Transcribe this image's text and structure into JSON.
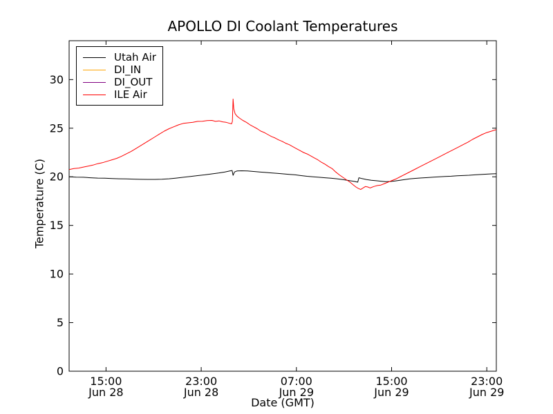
{
  "chart_data": {
    "type": "line",
    "title": "APOLLO DI Coolant Temperatures",
    "xlabel": "Date (GMT)",
    "ylabel": "Temperature (C)",
    "grid": false,
    "legend_position": "upper left",
    "x_unit": "hours since Jun 28 00:00 GMT",
    "xlim": [
      11.9,
      47.8
    ],
    "ylim": [
      0,
      34
    ],
    "x_ticks": [
      {
        "value": 15,
        "label": "15:00",
        "sublabel": "Jun 28"
      },
      {
        "value": 23,
        "label": "23:00",
        "sublabel": "Jun 28"
      },
      {
        "value": 31,
        "label": "07:00",
        "sublabel": "Jun 29"
      },
      {
        "value": 39,
        "label": "15:00",
        "sublabel": "Jun 29"
      },
      {
        "value": 47,
        "label": "23:00",
        "sublabel": "Jun 29"
      }
    ],
    "y_ticks": [
      0,
      5,
      10,
      15,
      20,
      25,
      30
    ],
    "series": [
      {
        "name": "Utah Air",
        "color": "#000000",
        "points": [
          [
            11.9,
            20.0
          ],
          [
            12.5,
            19.97
          ],
          [
            13.1,
            19.95
          ],
          [
            13.7,
            19.9
          ],
          [
            14.3,
            19.87
          ],
          [
            14.9,
            19.85
          ],
          [
            15.5,
            19.82
          ],
          [
            16.1,
            19.8
          ],
          [
            16.7,
            19.78
          ],
          [
            17.3,
            19.76
          ],
          [
            17.9,
            19.74
          ],
          [
            18.5,
            19.73
          ],
          [
            19.1,
            19.73
          ],
          [
            19.7,
            19.75
          ],
          [
            20.3,
            19.8
          ],
          [
            20.9,
            19.87
          ],
          [
            21.5,
            19.95
          ],
          [
            22.1,
            20.03
          ],
          [
            22.7,
            20.12
          ],
          [
            23.3,
            20.2
          ],
          [
            23.9,
            20.3
          ],
          [
            24.5,
            20.4
          ],
          [
            25.0,
            20.5
          ],
          [
            25.4,
            20.6
          ],
          [
            25.6,
            20.65
          ],
          [
            25.68,
            20.15
          ],
          [
            25.8,
            20.5
          ],
          [
            26.0,
            20.6
          ],
          [
            26.4,
            20.62
          ],
          [
            26.9,
            20.6
          ],
          [
            27.4,
            20.55
          ],
          [
            27.9,
            20.5
          ],
          [
            28.4,
            20.45
          ],
          [
            28.9,
            20.4
          ],
          [
            29.4,
            20.35
          ],
          [
            29.9,
            20.3
          ],
          [
            30.4,
            20.25
          ],
          [
            30.9,
            20.2
          ],
          [
            31.4,
            20.12
          ],
          [
            31.9,
            20.05
          ],
          [
            32.4,
            20.0
          ],
          [
            32.9,
            19.95
          ],
          [
            33.4,
            19.9
          ],
          [
            33.9,
            19.85
          ],
          [
            34.4,
            19.8
          ],
          [
            34.9,
            19.72
          ],
          [
            35.4,
            19.62
          ],
          [
            35.9,
            19.52
          ],
          [
            36.15,
            19.45
          ],
          [
            36.25,
            19.9
          ],
          [
            36.5,
            19.82
          ],
          [
            36.9,
            19.72
          ],
          [
            37.3,
            19.65
          ],
          [
            37.7,
            19.6
          ],
          [
            38.1,
            19.55
          ],
          [
            38.5,
            19.5
          ],
          [
            38.9,
            19.52
          ],
          [
            39.3,
            19.58
          ],
          [
            39.7,
            19.65
          ],
          [
            40.1,
            19.72
          ],
          [
            40.5,
            19.78
          ],
          [
            41.0,
            19.84
          ],
          [
            41.5,
            19.88
          ],
          [
            42.0,
            19.92
          ],
          [
            42.5,
            19.96
          ],
          [
            43.0,
            20.0
          ],
          [
            43.5,
            20.03
          ],
          [
            44.0,
            20.06
          ],
          [
            44.5,
            20.1
          ],
          [
            45.0,
            20.13
          ],
          [
            45.5,
            20.16
          ],
          [
            46.0,
            20.2
          ],
          [
            46.5,
            20.24
          ],
          [
            47.0,
            20.27
          ],
          [
            47.4,
            20.3
          ],
          [
            47.8,
            20.32
          ]
        ]
      },
      {
        "name": "DI_IN",
        "color": "#ffa500",
        "points": []
      },
      {
        "name": "DI_OUT",
        "color": "#800080",
        "points": []
      },
      {
        "name": "ILE Air",
        "color": "#ff0000",
        "points": [
          [
            11.9,
            20.75
          ],
          [
            12.3,
            20.85
          ],
          [
            12.7,
            20.9
          ],
          [
            13.1,
            21.0
          ],
          [
            13.5,
            21.1
          ],
          [
            13.9,
            21.2
          ],
          [
            14.3,
            21.35
          ],
          [
            14.7,
            21.45
          ],
          [
            15.1,
            21.6
          ],
          [
            15.5,
            21.75
          ],
          [
            15.9,
            21.9
          ],
          [
            16.3,
            22.1
          ],
          [
            16.7,
            22.35
          ],
          [
            17.1,
            22.6
          ],
          [
            17.5,
            22.9
          ],
          [
            17.9,
            23.2
          ],
          [
            18.3,
            23.5
          ],
          [
            18.7,
            23.8
          ],
          [
            19.1,
            24.1
          ],
          [
            19.5,
            24.4
          ],
          [
            19.9,
            24.7
          ],
          [
            20.3,
            24.95
          ],
          [
            20.7,
            25.15
          ],
          [
            21.1,
            25.35
          ],
          [
            21.5,
            25.5
          ],
          [
            21.9,
            25.55
          ],
          [
            22.3,
            25.6
          ],
          [
            22.7,
            25.7
          ],
          [
            23.1,
            25.72
          ],
          [
            23.5,
            25.78
          ],
          [
            23.9,
            25.8
          ],
          [
            24.2,
            25.7
          ],
          [
            24.5,
            25.75
          ],
          [
            24.8,
            25.65
          ],
          [
            25.1,
            25.6
          ],
          [
            25.4,
            25.5
          ],
          [
            25.55,
            25.45
          ],
          [
            25.62,
            25.7
          ],
          [
            25.68,
            28.0
          ],
          [
            25.74,
            27.0
          ],
          [
            25.85,
            26.5
          ],
          [
            26.0,
            26.25
          ],
          [
            26.2,
            26.05
          ],
          [
            26.5,
            25.8
          ],
          [
            26.8,
            25.6
          ],
          [
            27.1,
            25.35
          ],
          [
            27.4,
            25.15
          ],
          [
            27.7,
            24.95
          ],
          [
            28.0,
            24.7
          ],
          [
            28.3,
            24.55
          ],
          [
            28.6,
            24.35
          ],
          [
            28.9,
            24.15
          ],
          [
            29.2,
            24.0
          ],
          [
            29.5,
            23.8
          ],
          [
            29.8,
            23.65
          ],
          [
            30.1,
            23.45
          ],
          [
            30.4,
            23.3
          ],
          [
            30.7,
            23.1
          ],
          [
            31.0,
            22.9
          ],
          [
            31.3,
            22.7
          ],
          [
            31.6,
            22.5
          ],
          [
            31.9,
            22.35
          ],
          [
            32.2,
            22.15
          ],
          [
            32.5,
            21.95
          ],
          [
            32.8,
            21.75
          ],
          [
            33.1,
            21.5
          ],
          [
            33.4,
            21.3
          ],
          [
            33.7,
            21.05
          ],
          [
            34.0,
            20.85
          ],
          [
            34.3,
            20.5
          ],
          [
            34.6,
            20.2
          ],
          [
            34.9,
            19.95
          ],
          [
            35.2,
            19.7
          ],
          [
            35.5,
            19.45
          ],
          [
            35.8,
            19.15
          ],
          [
            36.0,
            18.95
          ],
          [
            36.2,
            18.8
          ],
          [
            36.4,
            18.7
          ],
          [
            36.6,
            18.85
          ],
          [
            36.8,
            19.0
          ],
          [
            37.0,
            18.95
          ],
          [
            37.2,
            18.85
          ],
          [
            37.5,
            19.0
          ],
          [
            37.8,
            19.1
          ],
          [
            38.1,
            19.15
          ],
          [
            38.4,
            19.3
          ],
          [
            38.7,
            19.45
          ],
          [
            39.0,
            19.6
          ],
          [
            39.4,
            19.8
          ],
          [
            39.8,
            20.05
          ],
          [
            40.2,
            20.3
          ],
          [
            40.6,
            20.55
          ],
          [
            41.0,
            20.8
          ],
          [
            41.4,
            21.05
          ],
          [
            41.8,
            21.3
          ],
          [
            42.2,
            21.55
          ],
          [
            42.6,
            21.8
          ],
          [
            43.0,
            22.05
          ],
          [
            43.4,
            22.3
          ],
          [
            43.8,
            22.55
          ],
          [
            44.2,
            22.8
          ],
          [
            44.6,
            23.05
          ],
          [
            45.0,
            23.3
          ],
          [
            45.4,
            23.55
          ],
          [
            45.8,
            23.85
          ],
          [
            46.2,
            24.1
          ],
          [
            46.6,
            24.35
          ],
          [
            47.0,
            24.55
          ],
          [
            47.4,
            24.7
          ],
          [
            47.8,
            24.85
          ]
        ]
      }
    ]
  }
}
